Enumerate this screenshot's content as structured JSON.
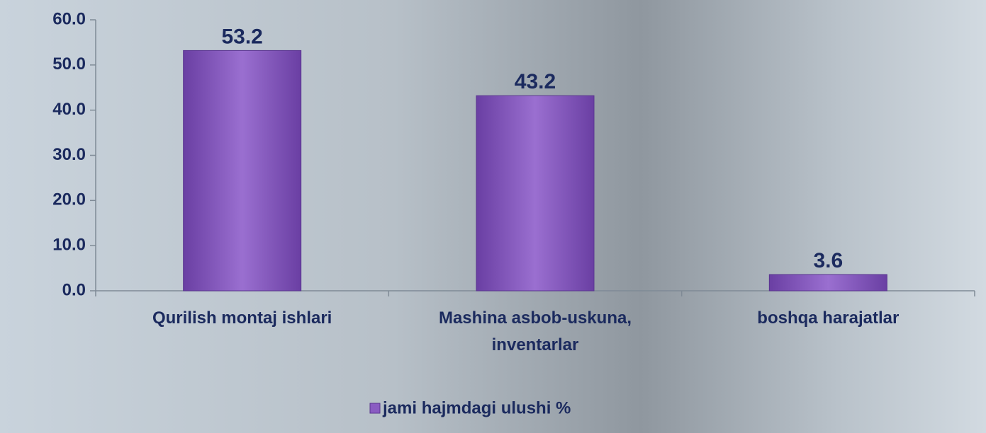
{
  "chart_data": {
    "type": "bar",
    "categories": [
      "Qurilish montaj ishlari",
      "Mashina asbob-uskuna, inventarlar",
      "boshqa harajatlar"
    ],
    "series": [
      {
        "name": "jami hajmdagi ulushi %",
        "color": "#8a5cc2",
        "values": [
          53.2,
          43.2,
          3.6
        ]
      }
    ],
    "ylim": [
      0,
      60
    ],
    "yticks": [
      {
        "value": 0,
        "label": "0.0"
      },
      {
        "value": 10,
        "label": "10.0"
      },
      {
        "value": 20,
        "label": "20.0"
      },
      {
        "value": 30,
        "label": "30.0"
      },
      {
        "value": 40,
        "label": "40.0"
      },
      {
        "value": 50,
        "label": "50.0"
      },
      {
        "value": 60,
        "label": "60.0"
      }
    ],
    "legend": "bottom"
  }
}
